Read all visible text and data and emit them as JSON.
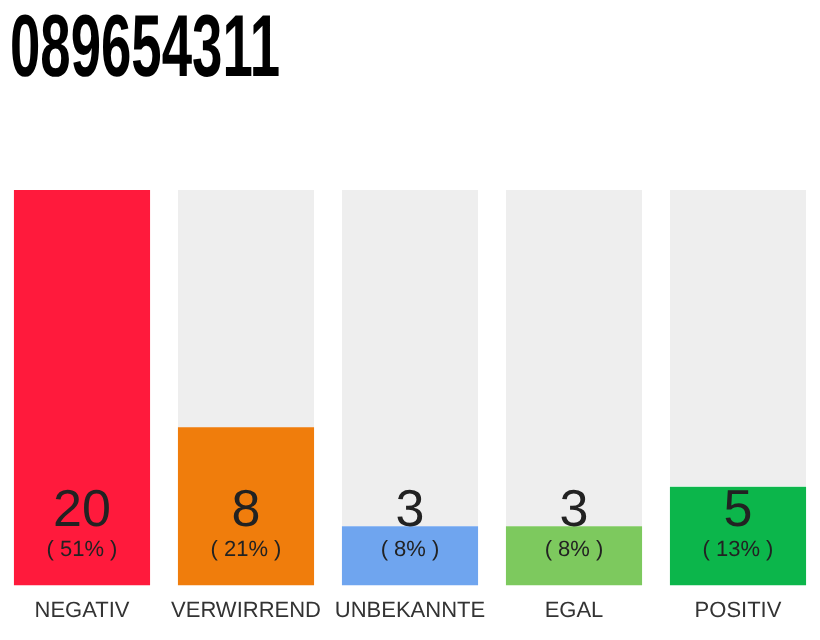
{
  "chart_data": {
    "type": "bar",
    "title": "089654311",
    "categories": [
      "NEGATIV",
      "VERWIRREND",
      "UNBEKANNTE",
      "EGAL",
      "POSITIV"
    ],
    "values": [
      20,
      8,
      3,
      3,
      5
    ],
    "colors": [
      "#ff1a3c",
      "#f07d0c",
      "#6fa5ef",
      "#7dc95e",
      "#0cb64b"
    ],
    "data_labels": true,
    "annotations": [
      "( 51% )",
      "( 21% )",
      "( 8% )",
      "( 8% )",
      "( 13% )"
    ],
    "grid": false,
    "legend": false
  }
}
